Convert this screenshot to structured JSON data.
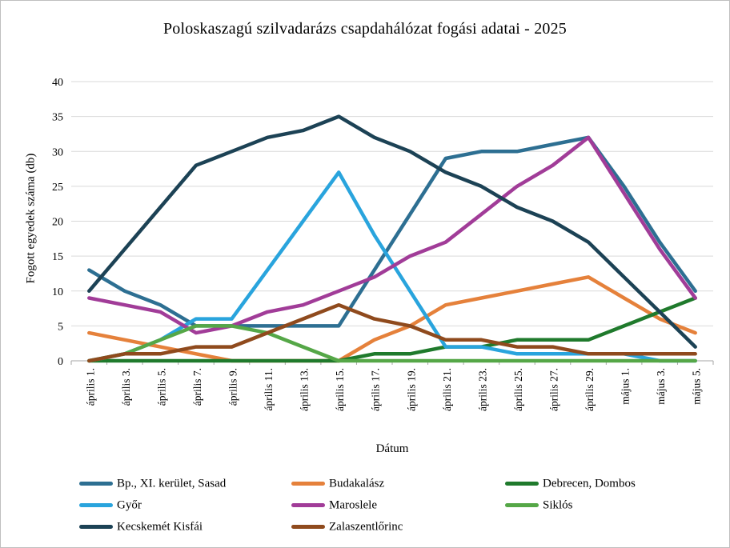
{
  "window": {
    "background": "#ffffff",
    "border_color": "#bfbfbf"
  },
  "style": {
    "gridline_color": "#d9d9d9",
    "axis_color": "#a6a6a6",
    "text_color": "#000000",
    "line_width": 4.5
  },
  "chart_data": {
    "type": "line",
    "title": "Poloskaszagú szilvadarázs csapdahálózat fogási adatai - 2025",
    "xlabel": "Dátum",
    "ylabel": "Fogott egyedek száma (db)",
    "ylim": [
      0,
      40
    ],
    "ytick_step": 5,
    "grid": "horizontal",
    "legend_position": "bottom",
    "categories": [
      "április 1.",
      "április 3.",
      "április 5.",
      "április 7.",
      "április 9.",
      "április 11.",
      "április 13.",
      "április 15.",
      "április 17.",
      "április 19.",
      "április 21.",
      "április 23.",
      "április 25.",
      "április 27.",
      "április 29.",
      "május 1.",
      "május 3.",
      "május 5."
    ],
    "series": [
      {
        "name": "Bp., XI. kerület, Sasad",
        "color": "#2d6f92",
        "values": [
          13,
          10,
          8,
          5,
          5,
          5,
          5,
          5,
          13,
          21,
          29,
          30,
          30,
          31,
          32,
          25,
          17,
          10
        ]
      },
      {
        "name": "Budakalász",
        "color": "#e5813b",
        "values": [
          4,
          3,
          2,
          1,
          0,
          0,
          0,
          0,
          3,
          5,
          8,
          9,
          10,
          11,
          12,
          9,
          6,
          4
        ]
      },
      {
        "name": "Debrecen, Dombos",
        "color": "#1f7a2c",
        "values": [
          0,
          0,
          0,
          0,
          0,
          0,
          0,
          0,
          1,
          1,
          2,
          2,
          3,
          3,
          3,
          5,
          7,
          9
        ]
      },
      {
        "name": "Győr",
        "color": "#29a4dd",
        "values": [
          0,
          1,
          3,
          6,
          6,
          13,
          20,
          27,
          18,
          10,
          2,
          2,
          1,
          1,
          1,
          1,
          0,
          0
        ]
      },
      {
        "name": "Maroslele",
        "color": "#a13c98",
        "values": [
          9,
          8,
          7,
          4,
          5,
          7,
          8,
          10,
          12,
          15,
          17,
          21,
          25,
          28,
          32,
          24,
          16,
          9
        ]
      },
      {
        "name": "Siklós",
        "color": "#55a747",
        "values": [
          0,
          1,
          3,
          5,
          5,
          4,
          2,
          0,
          0,
          0,
          0,
          0,
          0,
          0,
          0,
          0,
          0,
          0
        ]
      },
      {
        "name": "Kecskemét Kisfái",
        "color": "#1c4255",
        "values": [
          10,
          16,
          22,
          28,
          30,
          32,
          33,
          35,
          32,
          30,
          27,
          25,
          22,
          20,
          17,
          12,
          7,
          2
        ]
      },
      {
        "name": "Zalaszentlőrinc",
        "color": "#8f4a1d",
        "values": [
          0,
          1,
          1,
          2,
          2,
          4,
          6,
          8,
          6,
          5,
          3,
          3,
          2,
          2,
          1,
          1,
          1,
          1
        ]
      }
    ]
  }
}
